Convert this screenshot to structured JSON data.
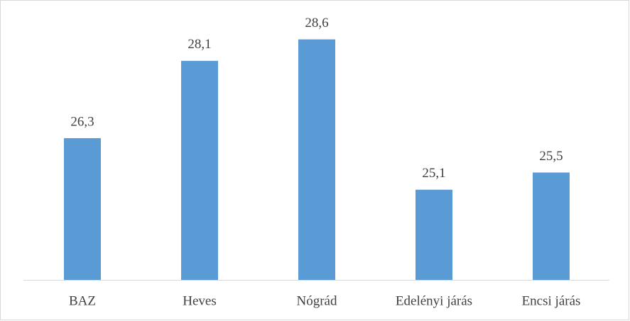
{
  "chart_data": {
    "type": "bar",
    "categories": [
      "BAZ",
      "Heves",
      "Nógrád",
      "Edelényi járás",
      "Encsi járás"
    ],
    "values": [
      26.3,
      28.1,
      28.6,
      25.1,
      25.5
    ],
    "value_labels": [
      "26,3",
      "28,1",
      "28,6",
      "25,1",
      "25,5"
    ],
    "color": "#5b9bd5",
    "ylim": [
      23,
      29.5
    ]
  }
}
